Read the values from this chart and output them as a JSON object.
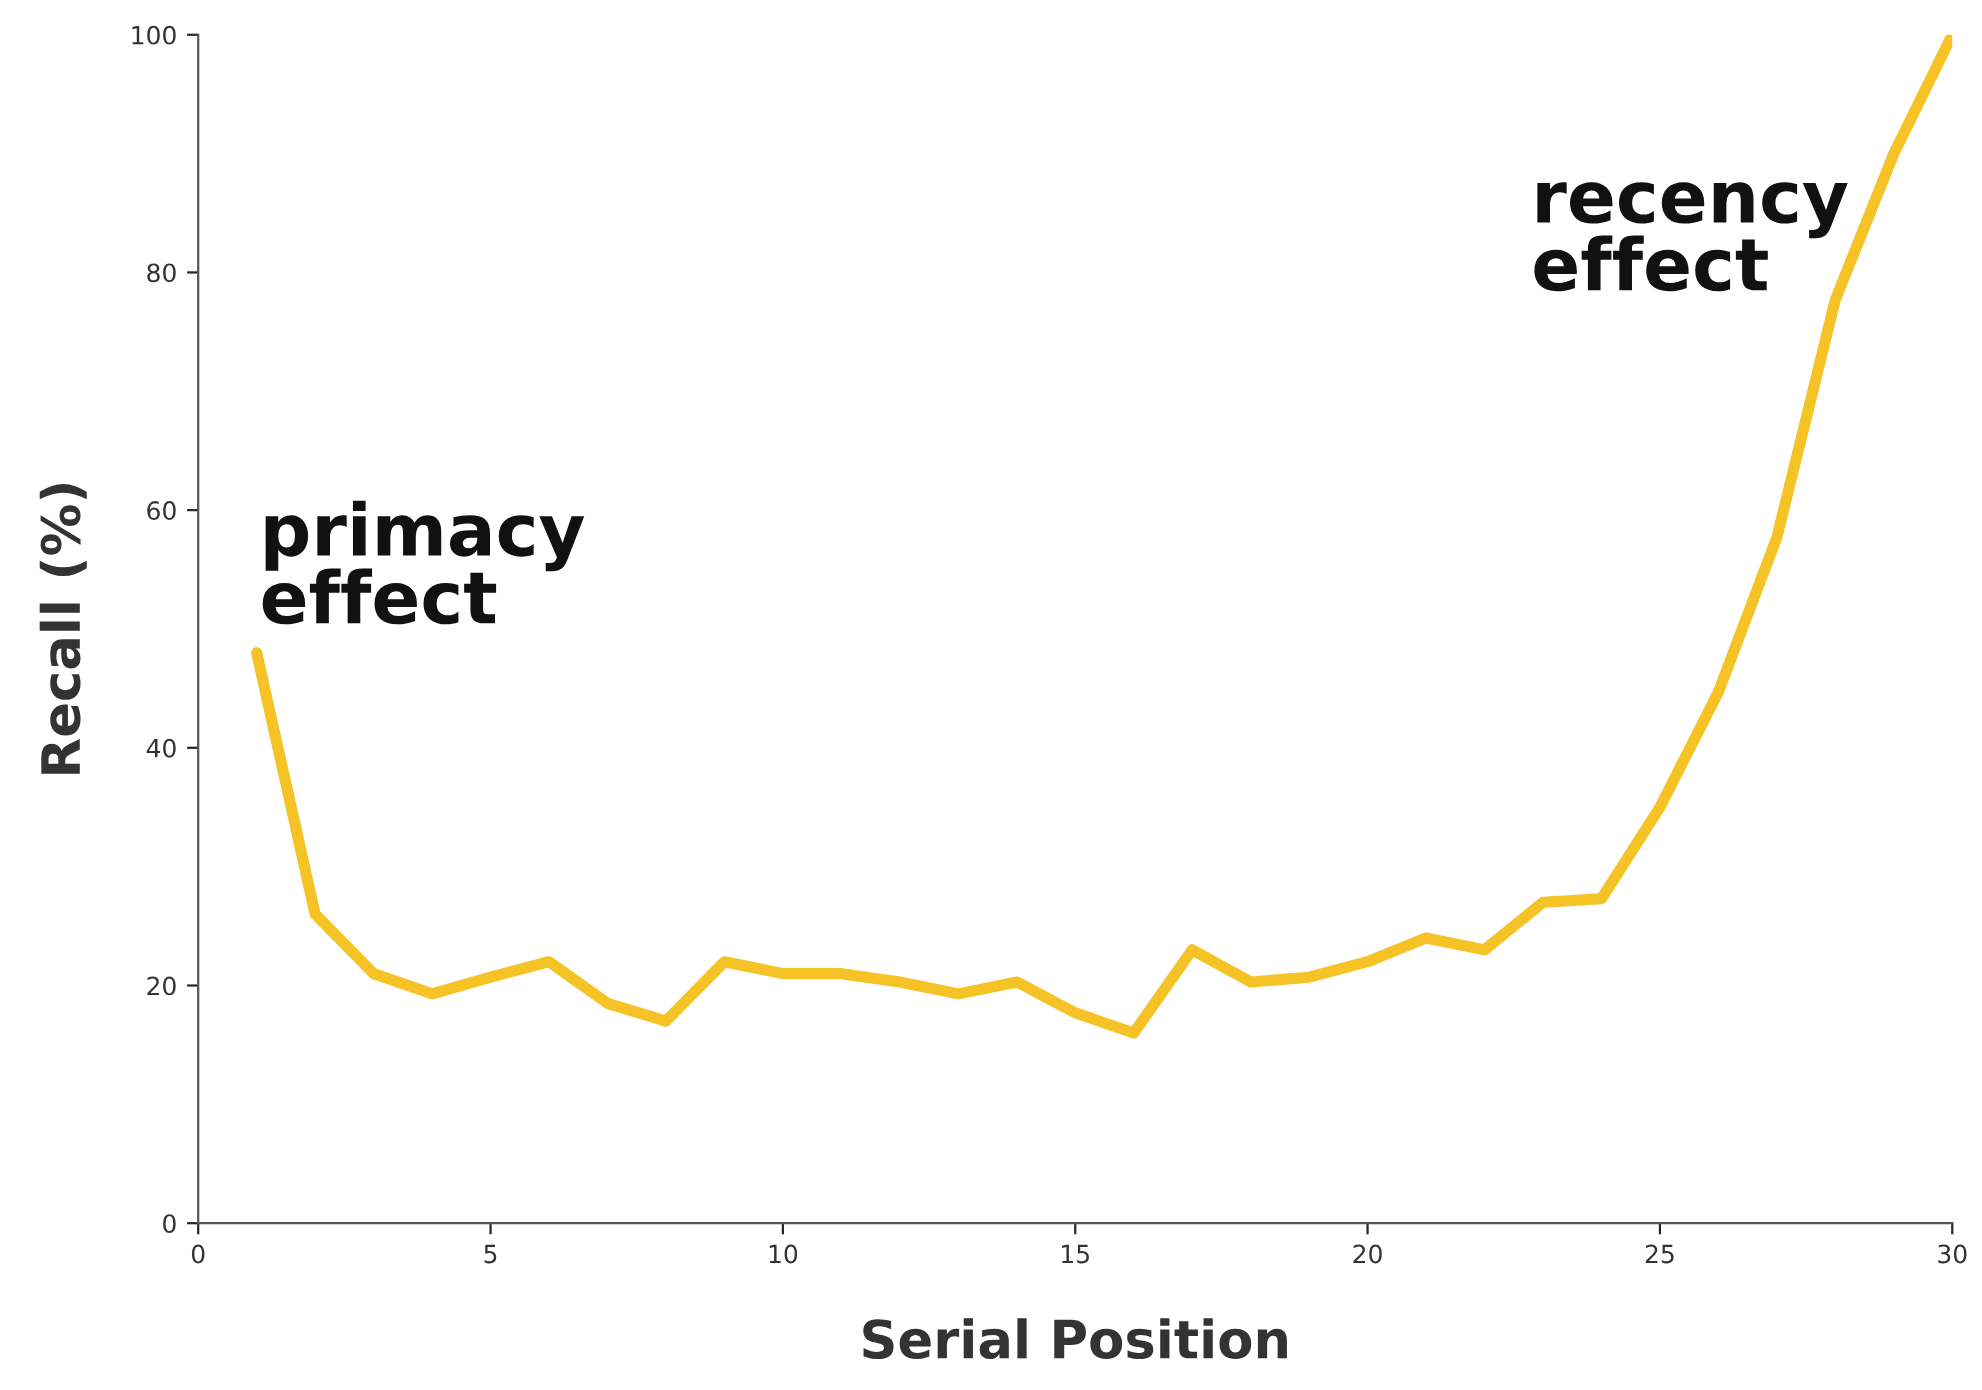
{
  "chart_data": {
    "type": "line",
    "xlabel": "Serial Position",
    "ylabel": "Recall (%)",
    "x": [
      1,
      2,
      3,
      4,
      5,
      6,
      7,
      8,
      9,
      10,
      11,
      12,
      13,
      14,
      15,
      16,
      17,
      18,
      19,
      20,
      21,
      22,
      23,
      24,
      25,
      26,
      27,
      28,
      29,
      30
    ],
    "series": [
      {
        "color": "#f5c326",
        "values": [
          48,
          26,
          21,
          19.3,
          20.7,
          22,
          18.5,
          17,
          22,
          21,
          21,
          20.3,
          19.3,
          20.3,
          17.7,
          16,
          23,
          20.3,
          20.7,
          22,
          24,
          23,
          27,
          27.3,
          35,
          44.7,
          57.7,
          77.7,
          90,
          100
        ]
      }
    ],
    "xlim": [
      0,
      30
    ],
    "xticks": [
      0,
      5,
      10,
      15,
      20,
      25,
      30
    ],
    "ylim": [
      0,
      100
    ],
    "yticks": [
      0,
      20,
      40,
      60,
      80,
      100
    ],
    "grid": false,
    "marker": "none",
    "line_style": "solid",
    "annotations": [
      "primacy\neffect",
      "recency\neffect"
    ]
  }
}
